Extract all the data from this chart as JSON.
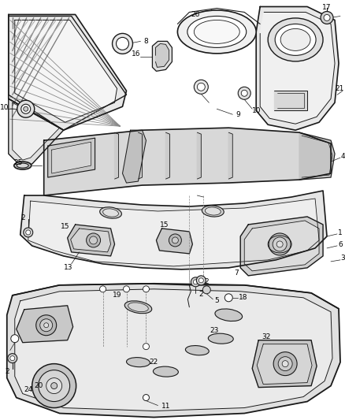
{
  "bg_color": "#ffffff",
  "line_color": "#1a1a1a",
  "label_color": "#000000",
  "figsize": [
    4.38,
    5.33
  ],
  "dpi": 100,
  "gray_fill": "#d0d0d0",
  "med_gray": "#aaaaaa",
  "dark_gray": "#555555"
}
